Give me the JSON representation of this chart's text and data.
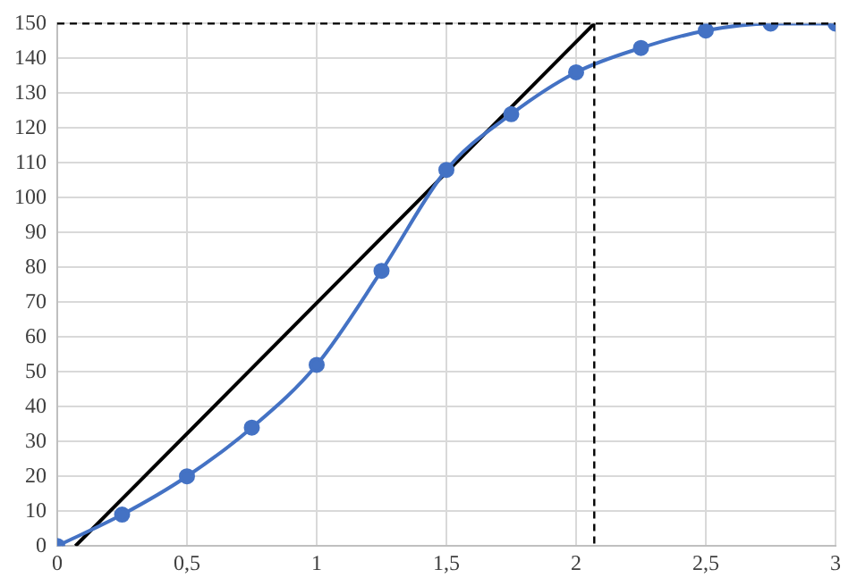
{
  "chart_data": {
    "type": "line",
    "x": [
      0,
      0.25,
      0.5,
      0.75,
      1,
      1.25,
      1.5,
      1.75,
      2,
      2.25,
      2.5,
      2.75,
      3
    ],
    "series": [
      {
        "color": "#4472c4",
        "values": [
          0,
          9,
          20,
          34,
          52,
          79,
          108,
          124,
          136,
          143,
          148,
          150,
          150
        ],
        "marker": "circle"
      },
      {
        "type": "line",
        "color": "#000000",
        "x": [
          0.07,
          2.07
        ],
        "values": [
          0,
          150
        ],
        "marker": "none"
      }
    ],
    "xlim": [
      0,
      3
    ],
    "xticks": [
      0,
      {
        "value": 0.5,
        "label": "0,5"
      },
      1,
      {
        "value": 1.5,
        "label": "1,5"
      },
      2,
      {
        "value": 2.5,
        "label": "2,5"
      },
      3
    ],
    "ylim": [
      0,
      150
    ],
    "yticks": [
      0,
      10,
      20,
      30,
      40,
      50,
      60,
      70,
      80,
      90,
      100,
      110,
      120,
      130,
      140,
      150
    ],
    "grid": true,
    "legend": false,
    "ref_lines": [
      {
        "axis": "y",
        "value": 150,
        "color": "#000000",
        "line_style": "dashed"
      },
      {
        "axis": "x",
        "value": 2.07,
        "color": "#000000",
        "line_style": "dashed"
      }
    ]
  }
}
